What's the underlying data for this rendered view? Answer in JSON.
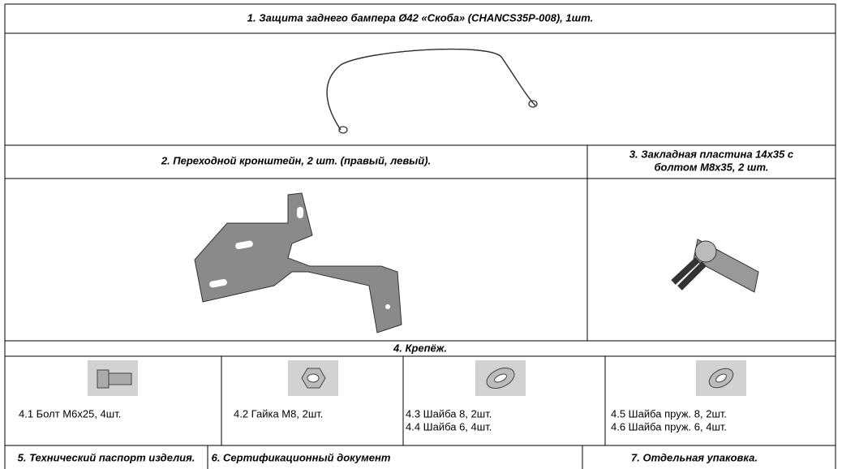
{
  "parts": {
    "title": "1. Защита заднего бампера Ø42 «Скоба» (CHANCS35P-008), 1шт."
  },
  "brackets": {
    "left_title": "2. Переходной кронштейн, 2 шт. (правый, левый).",
    "right_title": [
      "3. Закладная пластина 14x35 с",
      "болтом М8х35, 2 шт."
    ]
  },
  "fasteners": {
    "title": "4. Крепёж.",
    "items": [
      [
        "4.1 Болт М6х25, 4шт."
      ],
      [
        "4.2 Гайка М8, 2шт."
      ],
      [
        "4.3 Шайба 8, 2шт.",
        "4.4 Шайба 6, 4шт."
      ],
      [
        "4.5 Шайба пруж. 8, 2шт.",
        "4.6 Шайба пруж. 6, 4шт."
      ]
    ]
  },
  "footer": [
    "5. Технический паспорт изделия.",
    "6. Сертификационный документ",
    "7. Отдельная упаковка."
  ]
}
